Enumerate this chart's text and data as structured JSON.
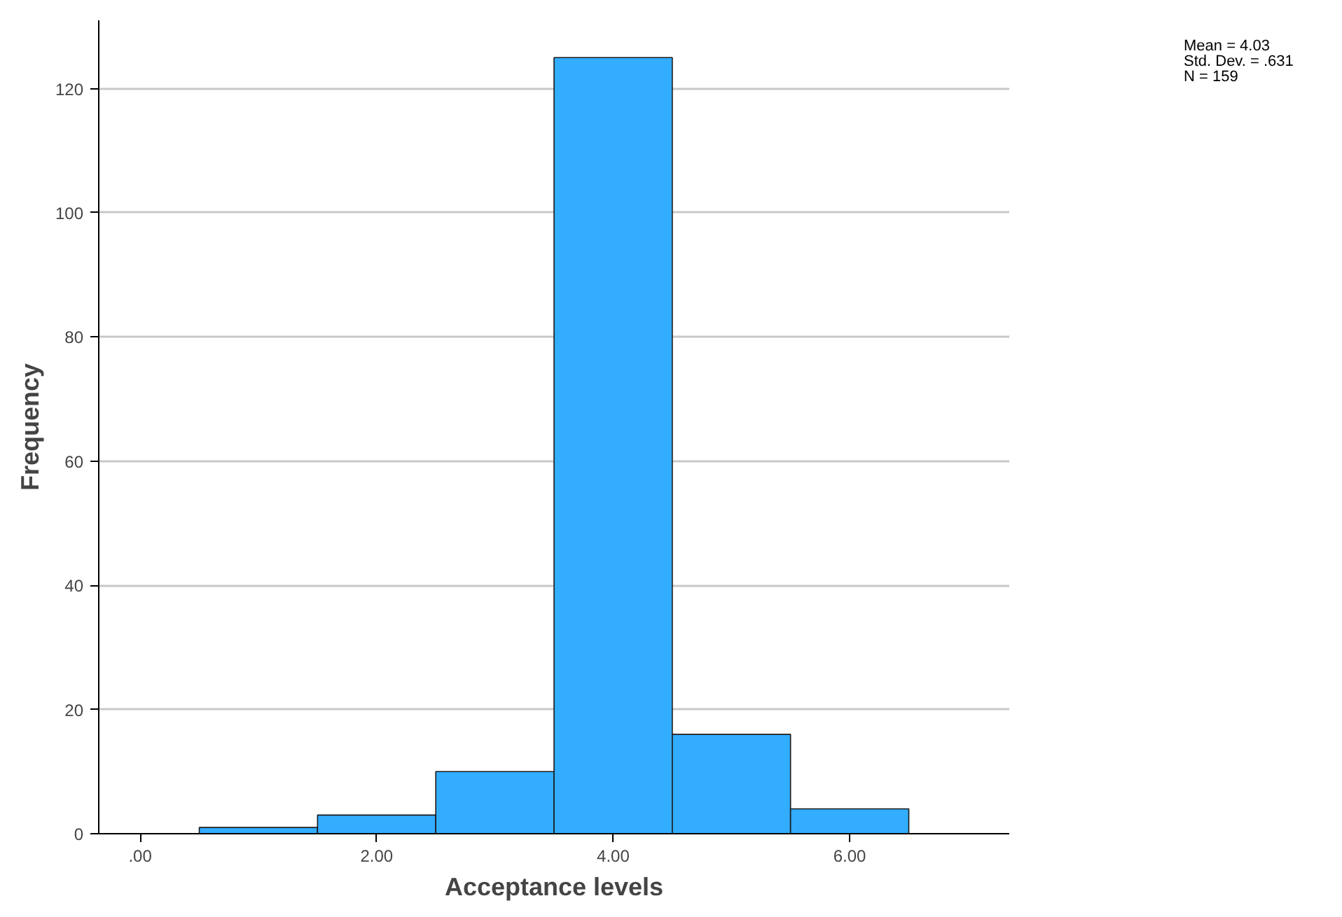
{
  "chart_data": {
    "type": "histogram",
    "xlabel": "Acceptance levels",
    "ylabel": "Frequency",
    "bins": [
      0.5,
      1.5,
      2.5,
      3.5,
      4.5,
      5.5,
      6.5
    ],
    "values": [
      1,
      3,
      10,
      125,
      16,
      4
    ],
    "color": "#33adff",
    "xlim": [
      -0.35,
      7.35
    ],
    "ylim": [
      0,
      131
    ],
    "xticks": [
      {
        "value": 0,
        "label": ".00"
      },
      {
        "value": 2,
        "label": "2.00"
      },
      {
        "value": 4,
        "label": "4.00"
      },
      {
        "value": 6,
        "label": "6.00"
      }
    ],
    "yticks": [
      0,
      20,
      40,
      60,
      80,
      100,
      120
    ],
    "grid": "y",
    "annotations": [
      "Mean = 4.03",
      "Std. Dev. = .631",
      "N = 159"
    ]
  }
}
